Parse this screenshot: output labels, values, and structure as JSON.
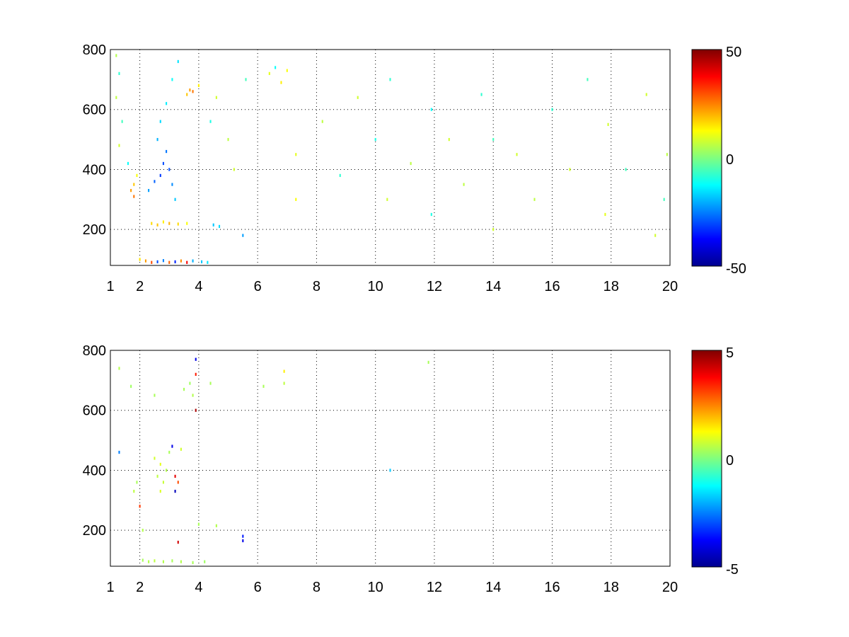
{
  "chart_data": [
    {
      "type": "heatmap",
      "title": "",
      "xlabel": "",
      "ylabel": "",
      "xlim": [
        1,
        20
      ],
      "ylim": [
        80,
        800
      ],
      "xticks": [
        "1",
        "2",
        "4",
        "6",
        "8",
        "10",
        "12",
        "14",
        "16",
        "18",
        "20"
      ],
      "yticks": [
        "200",
        "400",
        "600",
        "800"
      ],
      "grid": true,
      "colormap": "jet",
      "colorbar": {
        "range": [
          -50,
          50
        ],
        "ticks": [
          "50",
          "0",
          "-50"
        ]
      },
      "cells": [
        [
          1.2,
          780,
          5
        ],
        [
          1.3,
          720,
          -8
        ],
        [
          1.2,
          640,
          6
        ],
        [
          1.4,
          560,
          -6
        ],
        [
          1.3,
          480,
          8
        ],
        [
          1.6,
          420,
          -12
        ],
        [
          1.7,
          330,
          22
        ],
        [
          1.8,
          310,
          26
        ],
        [
          1.8,
          350,
          18
        ],
        [
          1.9,
          380,
          12
        ],
        [
          2.0,
          100,
          15
        ],
        [
          2.2,
          95,
          22
        ],
        [
          2.4,
          90,
          30
        ],
        [
          2.6,
          92,
          -30
        ],
        [
          2.8,
          96,
          -25
        ],
        [
          3.0,
          90,
          28
        ],
        [
          3.2,
          92,
          -34
        ],
        [
          3.4,
          95,
          24
        ],
        [
          3.6,
          90,
          38
        ],
        [
          3.8,
          95,
          -20
        ],
        [
          4.1,
          92,
          -18
        ],
        [
          4.3,
          90,
          -15
        ],
        [
          2.3,
          330,
          -22
        ],
        [
          2.5,
          360,
          -28
        ],
        [
          2.7,
          380,
          -32
        ],
        [
          2.8,
          420,
          -30
        ],
        [
          2.9,
          460,
          -26
        ],
        [
          3.0,
          400,
          -30
        ],
        [
          3.1,
          350,
          -24
        ],
        [
          3.2,
          300,
          -18
        ],
        [
          2.6,
          500,
          -20
        ],
        [
          2.7,
          560,
          -16
        ],
        [
          2.9,
          620,
          -14
        ],
        [
          3.1,
          700,
          -12
        ],
        [
          3.3,
          760,
          -15
        ],
        [
          2.4,
          220,
          16
        ],
        [
          2.6,
          215,
          18
        ],
        [
          2.8,
          225,
          14
        ],
        [
          3.0,
          220,
          20
        ],
        [
          3.3,
          218,
          16
        ],
        [
          3.6,
          220,
          12
        ],
        [
          3.7,
          665,
          22
        ],
        [
          3.8,
          660,
          26
        ],
        [
          3.6,
          650,
          18
        ],
        [
          4.0,
          680,
          14
        ],
        [
          4.5,
          215,
          -18
        ],
        [
          4.7,
          210,
          -16
        ],
        [
          4.4,
          560,
          -10
        ],
        [
          4.6,
          640,
          8
        ],
        [
          5.0,
          500,
          6
        ],
        [
          5.5,
          180,
          -22
        ],
        [
          5.2,
          400,
          8
        ],
        [
          5.6,
          700,
          -6
        ],
        [
          6.4,
          720,
          10
        ],
        [
          6.6,
          740,
          -12
        ],
        [
          6.8,
          690,
          14
        ],
        [
          7.0,
          730,
          12
        ],
        [
          7.3,
          450,
          10
        ],
        [
          7.3,
          300,
          12
        ],
        [
          8.2,
          560,
          6
        ],
        [
          8.8,
          380,
          -8
        ],
        [
          9.4,
          640,
          8
        ],
        [
          10.0,
          500,
          -10
        ],
        [
          10.4,
          300,
          8
        ],
        [
          10.5,
          700,
          -8
        ],
        [
          11.2,
          420,
          6
        ],
        [
          11.9,
          250,
          -10
        ],
        [
          11.9,
          600,
          -12
        ],
        [
          12.5,
          500,
          8
        ],
        [
          13.0,
          350,
          6
        ],
        [
          13.6,
          650,
          -8
        ],
        [
          14.0,
          200,
          8
        ],
        [
          14.0,
          500,
          -6
        ],
        [
          14.8,
          450,
          8
        ],
        [
          15.4,
          300,
          6
        ],
        [
          16.0,
          600,
          -8
        ],
        [
          16.6,
          400,
          8
        ],
        [
          17.2,
          700,
          -6
        ],
        [
          17.8,
          250,
          10
        ],
        [
          17.9,
          550,
          8
        ],
        [
          18.5,
          400,
          -6
        ],
        [
          19.2,
          650,
          8
        ],
        [
          19.8,
          300,
          -6
        ],
        [
          19.9,
          450,
          6
        ],
        [
          19.5,
          180,
          8
        ]
      ]
    },
    {
      "type": "heatmap",
      "title": "",
      "xlabel": "",
      "ylabel": "",
      "xlim": [
        1,
        20
      ],
      "ylim": [
        80,
        800
      ],
      "xticks": [
        "1",
        "2",
        "4",
        "6",
        "8",
        "10",
        "12",
        "14",
        "16",
        "18",
        "20"
      ],
      "yticks": [
        "200",
        "400",
        "600",
        "800"
      ],
      "grid": true,
      "colormap": "jet",
      "colorbar": {
        "range": [
          -5,
          5
        ],
        "ticks": [
          "5",
          "0",
          "-5"
        ]
      },
      "cells": [
        [
          1.3,
          740,
          0.5
        ],
        [
          1.3,
          460,
          -2.5
        ],
        [
          1.7,
          680,
          0.3
        ],
        [
          1.8,
          330,
          0.6
        ],
        [
          1.9,
          360,
          0.4
        ],
        [
          2.1,
          200,
          0.5
        ],
        [
          2.0,
          280,
          3.2
        ],
        [
          2.5,
          650,
          0.4
        ],
        [
          2.5,
          440,
          0.8
        ],
        [
          2.6,
          380,
          0.6
        ],
        [
          2.7,
          420,
          1.0
        ],
        [
          2.8,
          360,
          0.7
        ],
        [
          2.7,
          330,
          0.9
        ],
        [
          2.9,
          400,
          0.5
        ],
        [
          3.0,
          460,
          0.4
        ],
        [
          3.1,
          480,
          -4.0
        ],
        [
          3.2,
          380,
          4.0
        ],
        [
          3.2,
          330,
          -4.5
        ],
        [
          3.3,
          360,
          3.0
        ],
        [
          3.4,
          470,
          0.8
        ],
        [
          3.9,
          770,
          -4.0
        ],
        [
          3.9,
          720,
          3.5
        ],
        [
          3.9,
          600,
          4.6
        ],
        [
          3.5,
          670,
          0.4
        ],
        [
          3.7,
          690,
          0.3
        ],
        [
          3.8,
          650,
          0.5
        ],
        [
          4.4,
          690,
          0.4
        ],
        [
          4.6,
          215,
          0.5
        ],
        [
          4.0,
          220,
          0.4
        ],
        [
          3.3,
          160,
          4.2
        ],
        [
          5.5,
          180,
          -3.5
        ],
        [
          5.5,
          165,
          -4.0
        ],
        [
          6.2,
          680,
          0.4
        ],
        [
          6.9,
          730,
          1.4
        ],
        [
          6.9,
          690,
          0.6
        ],
        [
          2.1,
          100,
          0.4
        ],
        [
          2.3,
          95,
          0.5
        ],
        [
          2.5,
          98,
          0.6
        ],
        [
          2.8,
          95,
          0.5
        ],
        [
          3.1,
          98,
          0.4
        ],
        [
          3.4,
          95,
          0.5
        ],
        [
          3.8,
          92,
          0.4
        ],
        [
          4.2,
          95,
          0.3
        ],
        [
          10.5,
          400,
          -1.8
        ],
        [
          11.8,
          760,
          0.4
        ]
      ]
    }
  ]
}
